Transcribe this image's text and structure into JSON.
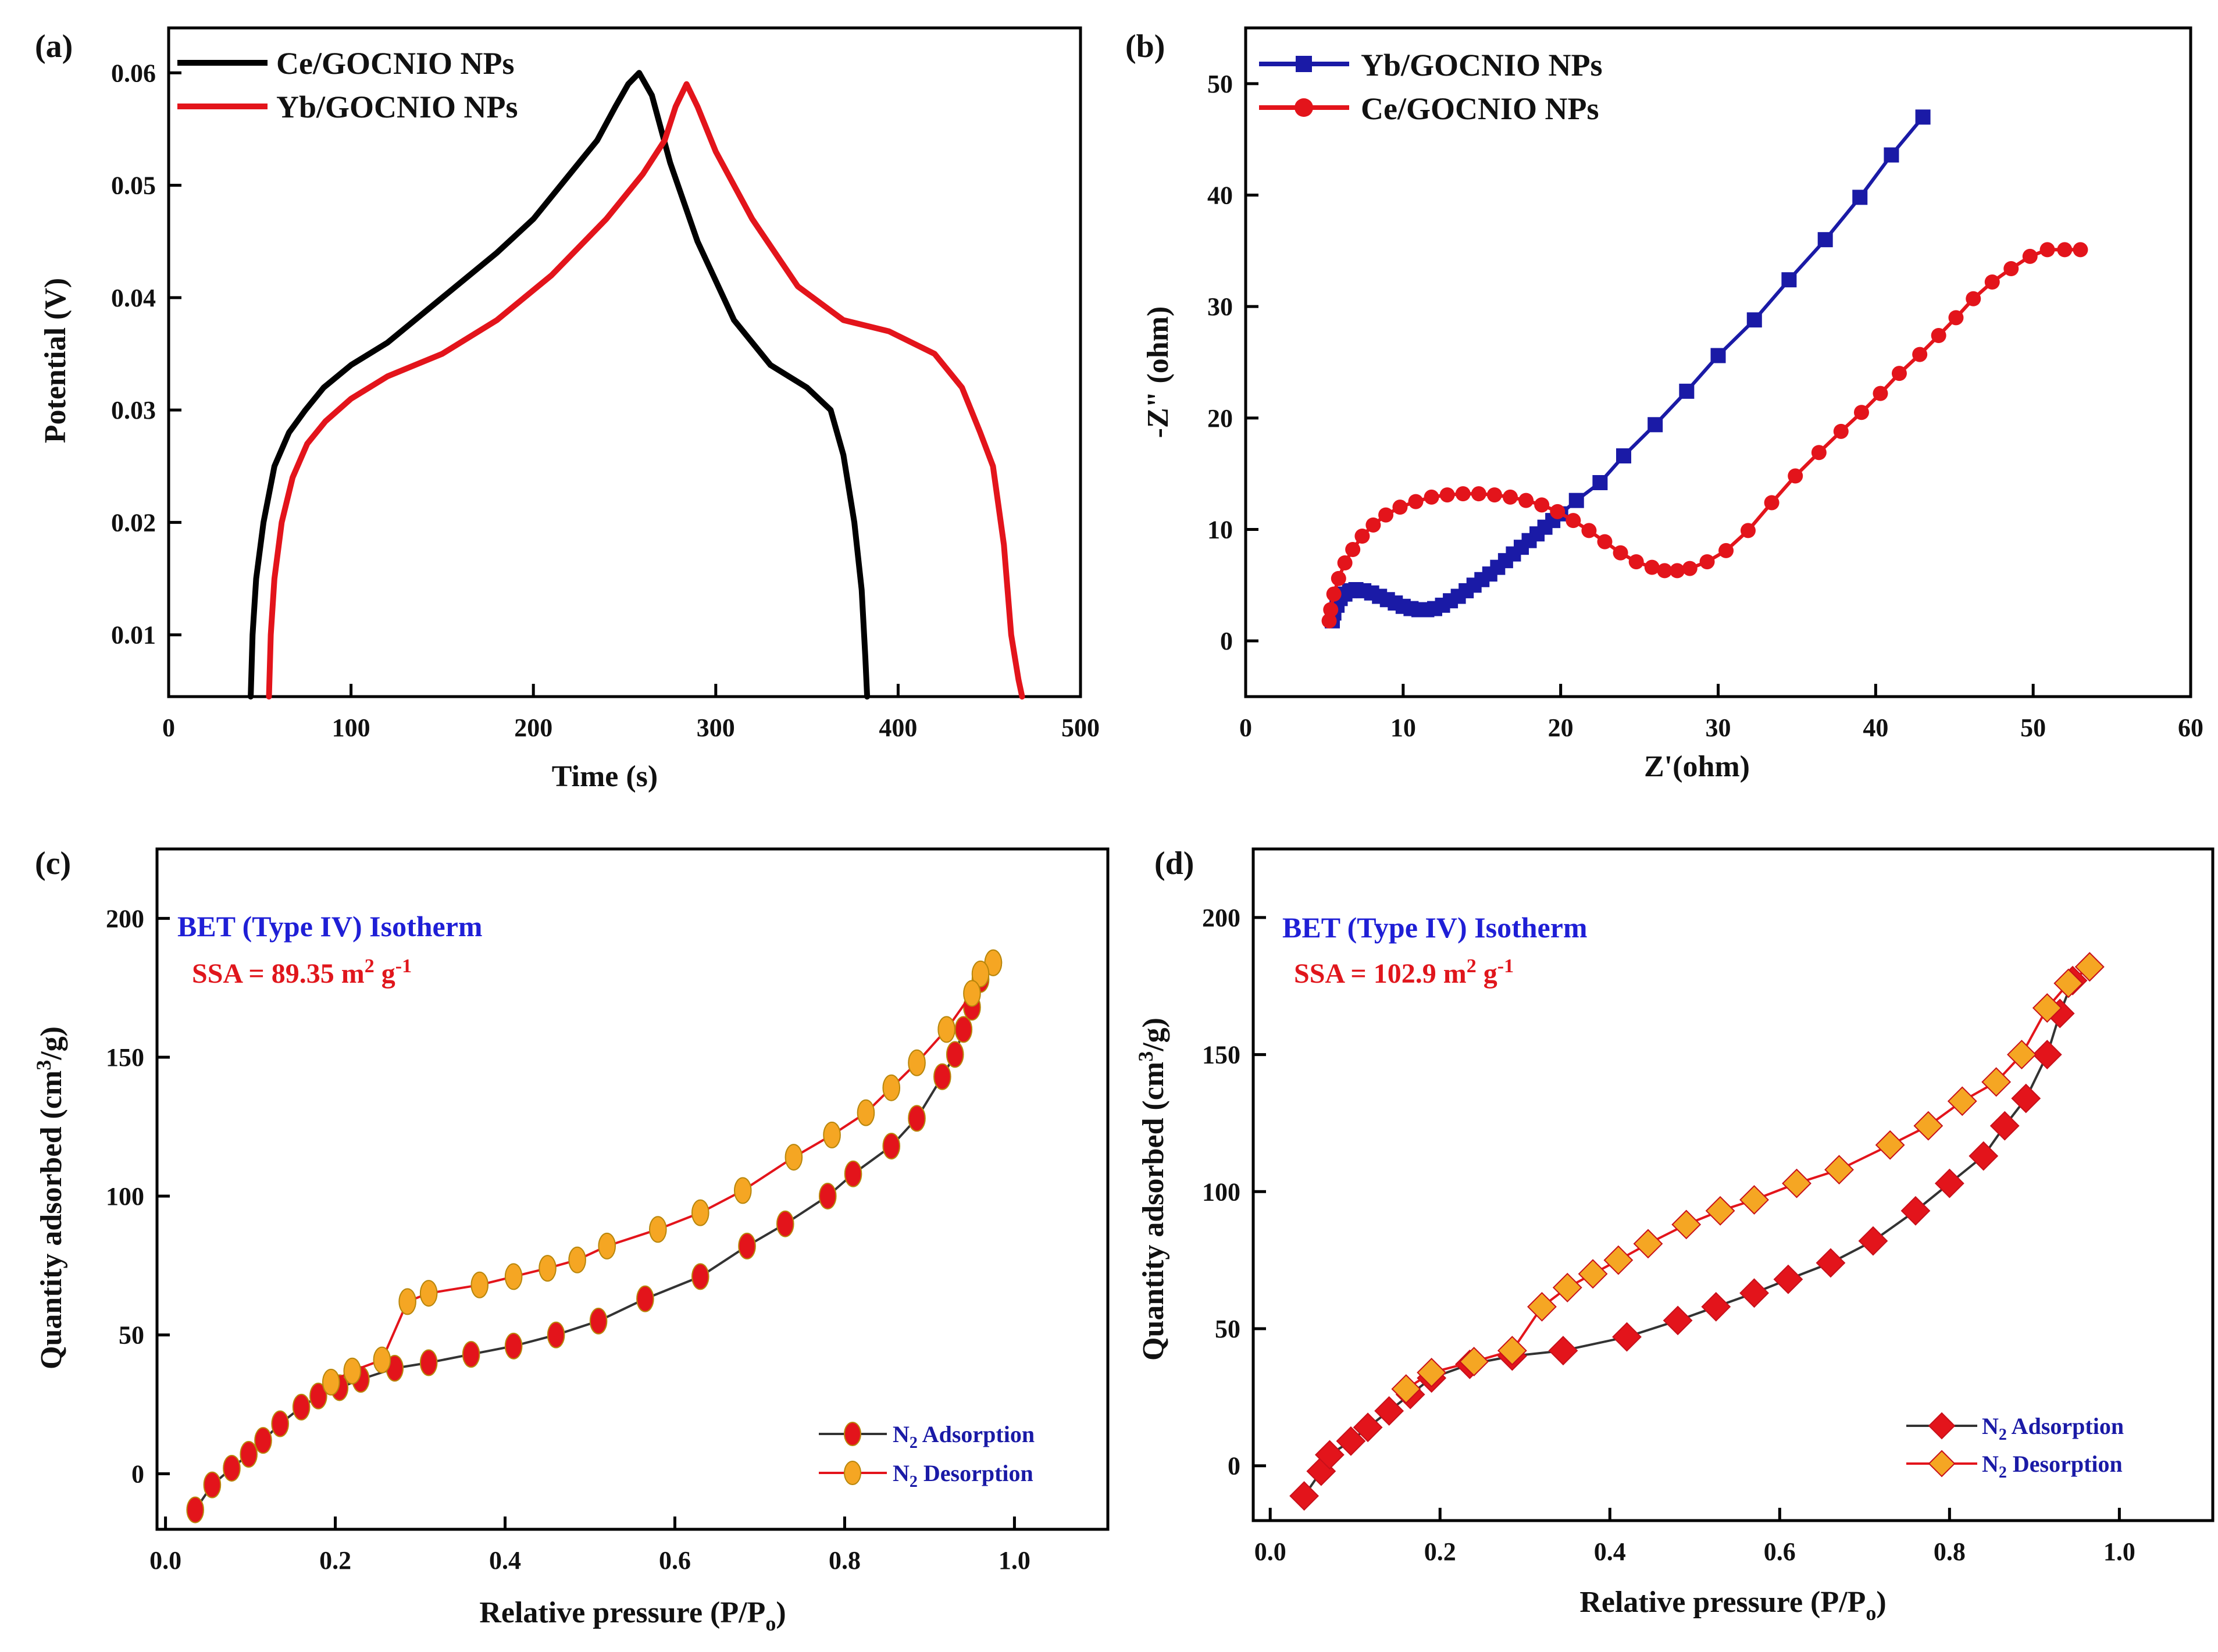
{
  "chart_data": [
    {
      "panel": "(a)",
      "type": "line",
      "xlabel": "Time (s)",
      "ylabel": "Potential (V)",
      "xlim": [
        0,
        500
      ],
      "ylim": [
        0.0045,
        0.064
      ],
      "xticks": [
        0,
        100,
        200,
        300,
        400,
        500
      ],
      "yticks": [
        0.01,
        0.02,
        0.03,
        0.04,
        0.05,
        0.06
      ],
      "xtick_labels": [
        "0",
        "100",
        "200",
        "300",
        "400",
        "500"
      ],
      "ytick_labels": [
        "0.01",
        "0.02",
        "0.03",
        "0.04",
        "0.05",
        "0.06"
      ],
      "legend_position": "top-left",
      "series": [
        {
          "name": "Ce/GOCNIO NPs",
          "color": "#000000",
          "marker": "none",
          "x": [
            45,
            46,
            48,
            52,
            58,
            66,
            75,
            85,
            100,
            120,
            150,
            180,
            200,
            220,
            235,
            245,
            252,
            258,
            265,
            275,
            290,
            310,
            330,
            350,
            363,
            370,
            376,
            380,
            382,
            383
          ],
          "y": [
            0.0045,
            0.01,
            0.015,
            0.02,
            0.025,
            0.028,
            0.03,
            0.032,
            0.034,
            0.036,
            0.04,
            0.044,
            0.047,
            0.051,
            0.054,
            0.057,
            0.059,
            0.06,
            0.058,
            0.052,
            0.045,
            0.038,
            0.034,
            0.032,
            0.03,
            0.026,
            0.02,
            0.014,
            0.008,
            0.0045
          ]
        },
        {
          "name": "Yb/GOCNIO NPs",
          "color": "#e3141b",
          "marker": "none",
          "x": [
            55,
            56,
            58,
            62,
            68,
            76,
            86,
            100,
            120,
            150,
            180,
            210,
            240,
            260,
            272,
            278,
            284,
            290,
            300,
            320,
            345,
            370,
            395,
            420,
            435,
            445,
            452,
            458,
            462,
            466,
            468
          ],
          "y": [
            0.0045,
            0.01,
            0.015,
            0.02,
            0.024,
            0.027,
            0.029,
            0.031,
            0.033,
            0.035,
            0.038,
            0.042,
            0.047,
            0.051,
            0.054,
            0.057,
            0.059,
            0.057,
            0.053,
            0.047,
            0.041,
            0.038,
            0.037,
            0.035,
            0.032,
            0.028,
            0.025,
            0.018,
            0.01,
            0.006,
            0.0045
          ]
        }
      ]
    },
    {
      "panel": "(b)",
      "type": "line",
      "xlabel": "Z'(ohm)",
      "ylabel": "-Z\" (ohm)",
      "xlim": [
        0,
        60
      ],
      "ylim": [
        -5,
        55
      ],
      "xticks": [
        0,
        10,
        20,
        30,
        40,
        50,
        60
      ],
      "yticks": [
        0,
        10,
        20,
        30,
        40,
        50
      ],
      "xtick_labels": [
        "0",
        "10",
        "20",
        "30",
        "40",
        "50",
        "60"
      ],
      "ytick_labels": [
        "0",
        "10",
        "20",
        "30",
        "40",
        "50"
      ],
      "legend_position": "top-left",
      "series": [
        {
          "name": "Yb/GOCNIO NPs",
          "color": "#1a1aa6",
          "marker": "square",
          "x": [
            5.5,
            5.6,
            5.8,
            6.0,
            6.3,
            6.6,
            7.0,
            7.5,
            8.0,
            8.5,
            9.0,
            9.5,
            10.0,
            10.5,
            11.0,
            11.5,
            12.0,
            12.5,
            13.0,
            13.5,
            14.0,
            14.5,
            15.0,
            15.5,
            16.0,
            16.5,
            17.0,
            17.5,
            18.0,
            18.5,
            19.0,
            19.5,
            20.0,
            21.0,
            22.5,
            24.0,
            26.0,
            28.0,
            30.0,
            32.3,
            34.5,
            36.8,
            39.0,
            41.0,
            43.0
          ],
          "y": [
            1.8,
            2.5,
            3.2,
            3.8,
            4.2,
            4.5,
            4.6,
            4.5,
            4.3,
            4.0,
            3.7,
            3.4,
            3.1,
            2.9,
            2.8,
            2.8,
            2.9,
            3.2,
            3.6,
            4.0,
            4.5,
            5.0,
            5.5,
            6.0,
            6.6,
            7.2,
            7.8,
            8.4,
            9.0,
            9.6,
            10.2,
            10.8,
            11.4,
            12.6,
            14.2,
            16.6,
            19.4,
            22.4,
            25.6,
            28.8,
            32.4,
            36.0,
            39.8,
            43.6,
            47.0
          ]
        },
        {
          "name": "Ce/GOCNIO NPs",
          "color": "#e3141b",
          "marker": "circle",
          "x": [
            5.3,
            5.4,
            5.6,
            5.9,
            6.3,
            6.8,
            7.4,
            8.1,
            8.9,
            9.8,
            10.8,
            11.8,
            12.8,
            13.8,
            14.8,
            15.8,
            16.8,
            17.8,
            18.8,
            19.8,
            20.8,
            21.8,
            22.8,
            23.8,
            24.8,
            25.8,
            26.6,
            27.4,
            28.2,
            29.3,
            30.5,
            31.9,
            33.4,
            34.9,
            36.4,
            37.8,
            39.1,
            40.3,
            41.5,
            42.8,
            44.0,
            45.1,
            46.2,
            47.4,
            48.6,
            49.8,
            50.9,
            52.0,
            53.0
          ],
          "y": [
            1.8,
            2.8,
            4.2,
            5.6,
            7.0,
            8.2,
            9.4,
            10.4,
            11.3,
            12.0,
            12.5,
            12.9,
            13.1,
            13.2,
            13.2,
            13.1,
            12.9,
            12.6,
            12.2,
            11.6,
            10.8,
            9.9,
            8.9,
            7.9,
            7.1,
            6.6,
            6.3,
            6.3,
            6.5,
            7.1,
            8.1,
            9.9,
            12.4,
            14.8,
            16.9,
            18.8,
            20.5,
            22.2,
            24.0,
            25.7,
            27.4,
            29.0,
            30.7,
            32.2,
            33.4,
            34.5,
            35.1,
            35.1,
            35.1
          ]
        }
      ]
    },
    {
      "panel": "(c)",
      "type": "line",
      "xlabel": "Relative pressure (P/P",
      "xlabel_sub": "o",
      "xlabel_end": ")",
      "ylabel": "Quantity adsorbed (cm",
      "ylabel_sup": "3",
      "ylabel_end": "/g)",
      "xlim": [
        -0.01,
        1.11
      ],
      "ylim": [
        -20,
        225
      ],
      "xticks": [
        0.0,
        0.2,
        0.4,
        0.6,
        0.8,
        1.0
      ],
      "yticks": [
        0,
        50,
        100,
        150,
        200
      ],
      "xtick_labels": [
        "0.0",
        "0.2",
        "0.4",
        "0.6",
        "0.8",
        "1.0"
      ],
      "ytick_labels": [
        "0",
        "50",
        "100",
        "150",
        "200"
      ],
      "note_title": "BET (Type IV) Isotherm",
      "note_ssa_prefix": "SSA = 89.35 m",
      "note_ssa_sup1": "2",
      "note_ssa_mid": " g",
      "note_ssa_sup2": "-1",
      "legend_position": "bottom-right",
      "series": [
        {
          "name": "N",
          "name_sub": "2",
          "name_rest": " Adsorption",
          "color": "#e3141b",
          "line_color": "#333333",
          "marker": "circle",
          "x": [
            0.035,
            0.055,
            0.078,
            0.098,
            0.115,
            0.135,
            0.16,
            0.18,
            0.205,
            0.23,
            0.27,
            0.31,
            0.36,
            0.41,
            0.46,
            0.51,
            0.565,
            0.63,
            0.685,
            0.73,
            0.78,
            0.81,
            0.855,
            0.885,
            0.915,
            0.93,
            0.94,
            0.95,
            0.96,
            0.975
          ],
          "y": [
            -13,
            -4,
            2,
            7,
            12,
            18,
            24,
            28,
            31,
            34,
            38,
            40,
            43,
            46,
            50,
            55,
            63,
            71,
            82,
            90,
            100,
            108,
            118,
            128,
            143,
            151,
            160,
            168,
            178,
            184
          ]
        },
        {
          "name": "N",
          "name_sub": "2",
          "name_rest": " Desorption",
          "color": "#f5a623",
          "line_color": "#e3141b",
          "marker": "circle",
          "x": [
            0.975,
            0.96,
            0.95,
            0.92,
            0.885,
            0.855,
            0.825,
            0.785,
            0.74,
            0.68,
            0.63,
            0.58,
            0.52,
            0.485,
            0.45,
            0.41,
            0.37,
            0.31,
            0.285,
            0.255,
            0.22,
            0.195
          ],
          "y": [
            184,
            180,
            173,
            160,
            148,
            139,
            130,
            122,
            114,
            102,
            94,
            88,
            82,
            77,
            74,
            71,
            68,
            65,
            62,
            41,
            37,
            33
          ]
        }
      ]
    },
    {
      "panel": "(d)",
      "type": "line",
      "xlabel": "Relative pressure (P/P",
      "xlabel_sub": "o",
      "xlabel_end": ")",
      "ylabel": "Quantity adsorbed (cm",
      "ylabel_sup": "3",
      "ylabel_end": "/g)",
      "xlim": [
        -0.02,
        1.11
      ],
      "ylim": [
        -20,
        225
      ],
      "xticks": [
        0.0,
        0.2,
        0.4,
        0.6,
        0.8,
        1.0
      ],
      "yticks": [
        0,
        50,
        100,
        150,
        200
      ],
      "xtick_labels": [
        "0.0",
        "0.2",
        "0.4",
        "0.6",
        "0.8",
        "1.0"
      ],
      "ytick_labels": [
        "0",
        "50",
        "100",
        "150",
        "200"
      ],
      "note_title": "BET (Type IV) Isotherm",
      "note_ssa_prefix": "SSA = 102.9 m",
      "note_ssa_sup1": "2",
      "note_ssa_mid": " g",
      "note_ssa_sup2": "-1",
      "legend_position": "bottom-right",
      "series": [
        {
          "name": "N",
          "name_sub": "2",
          "name_rest": " Adsorption",
          "color": "#e3141b",
          "line_color": "#333333",
          "marker": "diamond",
          "x": [
            0.04,
            0.06,
            0.07,
            0.095,
            0.115,
            0.14,
            0.165,
            0.19,
            0.235,
            0.285,
            0.345,
            0.42,
            0.48,
            0.525,
            0.57,
            0.61,
            0.66,
            0.71,
            0.76,
            0.8,
            0.84,
            0.865,
            0.89,
            0.915,
            0.93,
            0.945,
            0.965
          ],
          "y": [
            -11,
            -2,
            4,
            9,
            14,
            20,
            26,
            32,
            37,
            40,
            42,
            47,
            53,
            58,
            63,
            68,
            74,
            82,
            93,
            103,
            113,
            124,
            134,
            150,
            165,
            177,
            182
          ]
        },
        {
          "name": "N",
          "name_sub": "2",
          "name_rest": " Desorption",
          "color": "#f5a623",
          "line_color": "#e3141b",
          "marker": "diamond",
          "x": [
            0.965,
            0.94,
            0.915,
            0.885,
            0.855,
            0.815,
            0.775,
            0.73,
            0.67,
            0.62,
            0.57,
            0.53,
            0.49,
            0.445,
            0.41,
            0.38,
            0.35,
            0.32,
            0.285,
            0.24,
            0.19,
            0.16
          ],
          "y": [
            182,
            176,
            167,
            150,
            140,
            133,
            124,
            117,
            108,
            103,
            97,
            93,
            88,
            81,
            75,
            70,
            65,
            58,
            42,
            38,
            34,
            28
          ]
        }
      ]
    }
  ]
}
